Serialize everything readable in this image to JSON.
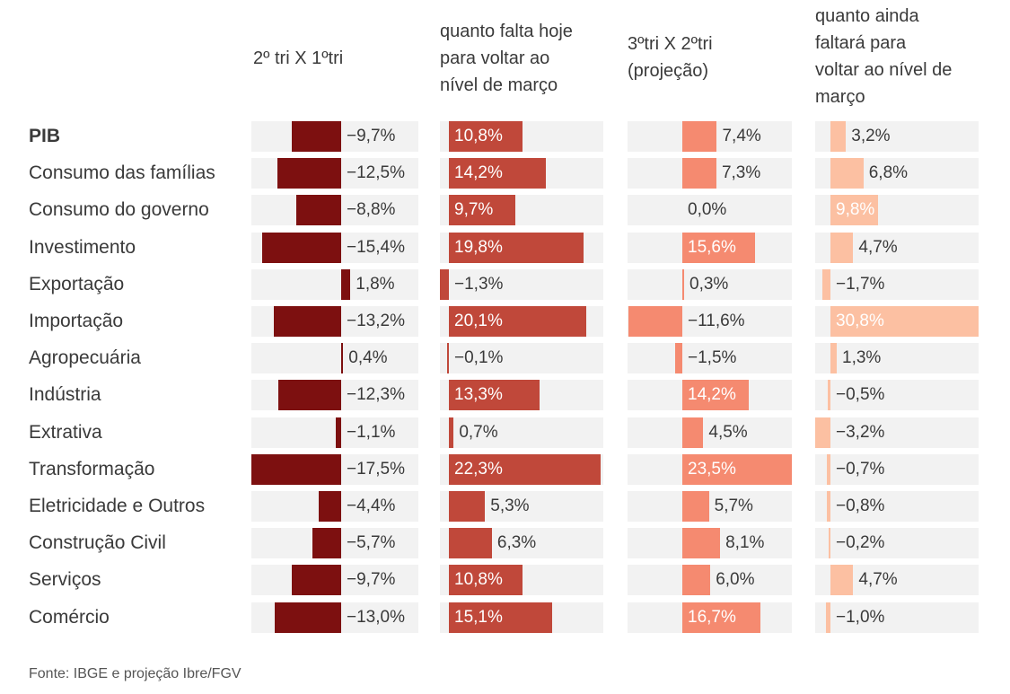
{
  "chart_data": {
    "type": "bar",
    "columns": [
      {
        "key": "q2_vs_q1",
        "title": "2º tri X 1ºtri",
        "color": "#7d1010"
      },
      {
        "key": "falta_hoje",
        "title": "quanto falta hoje para voltar ao nível de março",
        "color": "#c0483a"
      },
      {
        "key": "q3_vs_q2",
        "title": "3ºtri X 2ºtri (projeção)",
        "color": "#f58a70"
      },
      {
        "key": "falta_ainda",
        "title": "quanto ainda faltará para voltar ao nível de março",
        "color": "#fcc0a2"
      }
    ],
    "categories": [
      "PIB",
      "Consumo das famílias",
      "Consumo do governo",
      "Investimento",
      "Exportação",
      "Importação",
      "Agropecuária",
      "Indústria",
      "Extrativa",
      "Transformação",
      "Eletricidade e Outros",
      "Construção Civil",
      "Serviços",
      "Comércio"
    ],
    "bold_categories": [
      "PIB"
    ],
    "series": [
      {
        "name": "2º tri X 1ºtri",
        "values": [
          -9.7,
          -12.5,
          -8.8,
          -15.4,
          1.8,
          -13.2,
          0.4,
          -12.3,
          -1.1,
          -17.5,
          -4.4,
          -5.7,
          -9.7,
          -13.0
        ],
        "labels": [
          "−9,7%",
          "−12,5%",
          "−8,8%",
          "−15,4%",
          "1,8%",
          "−13,2%",
          "0,4%",
          "−12,3%",
          "−1,1%",
          "−17,5%",
          "−4,4%",
          "−5,7%",
          "−9,7%",
          "−13,0%"
        ]
      },
      {
        "name": "quanto falta hoje para voltar ao nível de março",
        "values": [
          10.8,
          14.2,
          9.7,
          19.8,
          -1.3,
          20.1,
          -0.1,
          13.3,
          0.7,
          22.3,
          5.3,
          6.3,
          10.8,
          15.1
        ],
        "labels": [
          "10,8%",
          "14,2%",
          "9,7%",
          "19,8%",
          "−1,3%",
          "20,1%",
          "−0,1%",
          "13,3%",
          "0,7%",
          "22,3%",
          "5,3%",
          "6,3%",
          "10,8%",
          "15,1%"
        ]
      },
      {
        "name": "3ºtri X 2ºtri (projeção)",
        "values": [
          7.4,
          7.3,
          0.0,
          15.6,
          0.3,
          -11.6,
          -1.5,
          14.2,
          4.5,
          23.5,
          5.7,
          8.1,
          6.0,
          16.7
        ],
        "labels": [
          "7,4%",
          "7,3%",
          "0,0%",
          "15,6%",
          "0,3%",
          "−11,6%",
          "−1,5%",
          "14,2%",
          "4,5%",
          "23,5%",
          "5,7%",
          "8,1%",
          "6,0%",
          "16,7%"
        ]
      },
      {
        "name": "quanto ainda faltará para voltar ao nível de março",
        "values": [
          3.2,
          6.8,
          9.8,
          4.7,
          -1.7,
          30.8,
          1.3,
          -0.5,
          -3.2,
          -0.7,
          -0.8,
          -0.2,
          4.7,
          -1.0
        ],
        "labels": [
          "3,2%",
          "6,8%",
          "9,8%",
          "4,7%",
          "−1,7%",
          "30,8%",
          "1,3%",
          "−0,5%",
          "−3,2%",
          "−0,7%",
          "−0,8%",
          "−0,2%",
          "4,7%",
          "−1,0%"
        ]
      }
    ],
    "source": "Fonte: IBGE e projeção Ibre/FGV"
  }
}
